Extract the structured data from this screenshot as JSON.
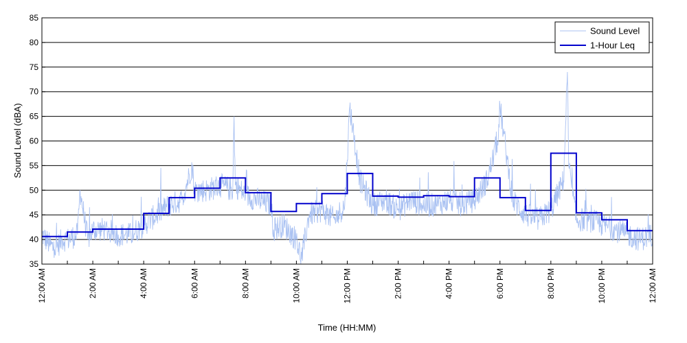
{
  "chart_data": {
    "type": "line",
    "title": "",
    "xlabel": "Time (HH:MM)",
    "ylabel": "Sound Level (dBA)",
    "ylim": [
      35,
      85
    ],
    "yticks": [
      35,
      40,
      45,
      50,
      55,
      60,
      65,
      70,
      75,
      80,
      85
    ],
    "xlim": [
      0,
      24
    ],
    "x_unit": "hours since 12:00 AM",
    "xtick_labels": [
      {
        "x": 0,
        "label": "12:00 AM"
      },
      {
        "x": 2,
        "label": "2:00 AM"
      },
      {
        "x": 4,
        "label": "4:00 AM"
      },
      {
        "x": 6,
        "label": "6:00 AM"
      },
      {
        "x": 8,
        "label": "8:00 AM"
      },
      {
        "x": 10,
        "label": "10:00 AM"
      },
      {
        "x": 12,
        "label": "12:00 PM"
      },
      {
        "x": 14,
        "label": "2:00 PM"
      },
      {
        "x": 16,
        "label": "4:00 PM"
      },
      {
        "x": 18,
        "label": "6:00 PM"
      },
      {
        "x": 20,
        "label": "8:00 PM"
      },
      {
        "x": 22,
        "label": "10:00 PM"
      },
      {
        "x": 24,
        "label": "12:00 AM"
      }
    ],
    "grid": "horizontal",
    "legend_position": "top-right",
    "series": [
      {
        "name": "Sound Level",
        "color": "#a9c1f2",
        "style": "noisy-line",
        "x": [
          0,
          0.3,
          0.5,
          0.8,
          1.0,
          1.4,
          1.5,
          1.8,
          2.0,
          2.5,
          3.0,
          3.5,
          4.0,
          4.5,
          5.0,
          5.5,
          5.9,
          6.0,
          6.5,
          7.0,
          7.5,
          7.55,
          7.6,
          8.0,
          8.5,
          9.0,
          9.1,
          9.5,
          10.0,
          10.2,
          10.5,
          11.0,
          11.5,
          11.9,
          12.1,
          12.5,
          13.0,
          13.5,
          14.0,
          14.5,
          15.0,
          15.5,
          16.0,
          16.5,
          17.0,
          17.5,
          17.9,
          18.0,
          18.5,
          19.0,
          19.5,
          20.0,
          20.5,
          20.65,
          20.7,
          21.0,
          21.5,
          22.0,
          22.5,
          23.0,
          23.5,
          24.0
        ],
        "y": [
          41,
          39,
          38,
          40,
          40,
          41,
          50,
          40,
          42,
          42,
          41,
          41,
          43,
          45,
          47,
          48,
          55,
          50,
          50,
          51,
          50,
          65,
          51,
          49,
          48,
          47,
          42,
          43,
          40,
          36,
          45,
          46,
          44,
          47,
          67,
          52,
          47,
          48,
          46,
          48,
          47,
          47,
          48,
          47,
          48,
          52,
          60,
          67,
          48,
          45,
          44,
          46,
          52,
          74,
          55,
          44,
          44,
          43,
          42,
          41,
          40,
          41
        ]
      },
      {
        "name": "1-Hour Leq",
        "color": "#0000cc",
        "style": "step",
        "hour_start": [
          0,
          1,
          2,
          3,
          4,
          5,
          6,
          7,
          8,
          9,
          10,
          11,
          12,
          13,
          14,
          15,
          16,
          17,
          18,
          19,
          20,
          21,
          22,
          23
        ],
        "values": [
          40.6,
          41.5,
          42.1,
          42.1,
          45.3,
          48.5,
          50.4,
          52.5,
          49.5,
          45.7,
          47.3,
          49.3,
          53.4,
          48.8,
          48.6,
          48.9,
          48.7,
          52.5,
          48.5,
          45.9,
          57.5,
          45.4,
          44.0,
          41.8
        ]
      }
    ]
  }
}
